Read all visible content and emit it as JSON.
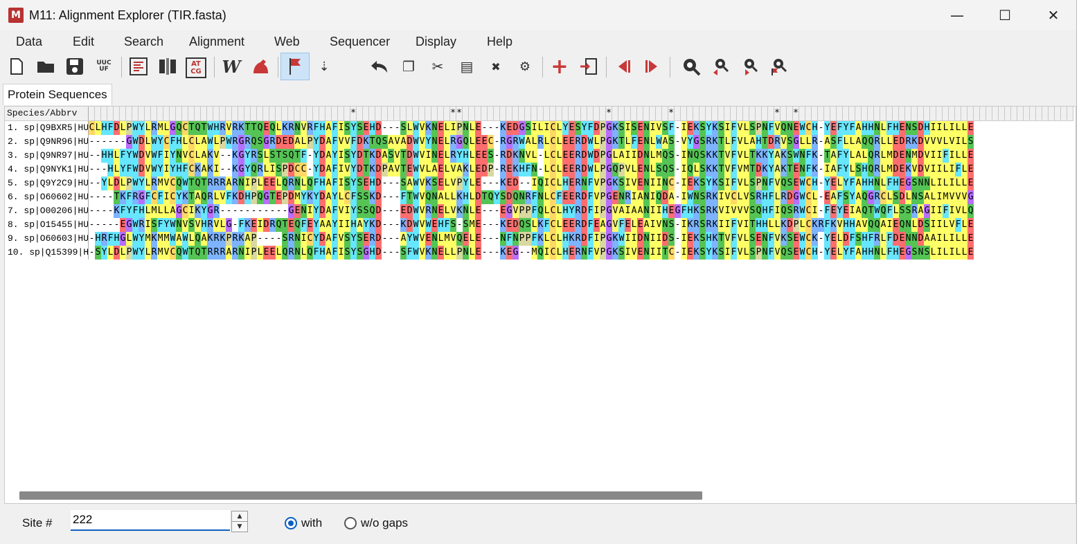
{
  "window": {
    "title": "M11: Alignment Explorer (TIR.fasta)",
    "app_icon_glyph": "M",
    "minimize_glyph": "—",
    "maximize_glyph": "☐",
    "close_glyph": "✕"
  },
  "menu": [
    "Data",
    "Edit",
    "Search",
    "Alignment",
    "Web",
    "Sequencer",
    "Display",
    "Help"
  ],
  "toolbar": {
    "icons": [
      "new-file-icon",
      "open-folder-icon",
      "save-icon",
      "translate-uuc-icon",
      "alignment-view-icon",
      "column-block-icon",
      "dna-atcg-icon",
      "w-clustal-icon",
      "muscle-icon",
      "flag-mark-icon",
      "cursor-insert-icon",
      "undo-icon",
      "copy-icon",
      "cut-icon",
      "paste-icon",
      "delete-icon",
      "search-settings-icon",
      "add-sequence-icon",
      "import-icon",
      "previous-block-icon",
      "next-block-icon",
      "search-icon",
      "search-previous-icon",
      "search-next-icon",
      "search-marked-icon"
    ],
    "label_uucf": "UUC UF",
    "label_atcg": "AT CG",
    "label_w": "W"
  },
  "tab": "Protein Sequences",
  "alignment": {
    "header_label": "Species/Abbrv",
    "consensus": "                                          *               **                       *         *                *  *                                                     ",
    "rows": [
      {
        "name": "1.  sp|Q9BXR5|HU",
        "seq": "CLHFDLPWYLRMLGQCTQTWHRVRKTTQEQLKRNVRFHAFISYSEHD---SLWVKNELIPNLE---KEDGSILICLYESYFDPGKSISENIVSF-IEKSYKSIFVLSPNFVQNEWCH-YEFYFAHHNLFHENSDHIILILLE"
      },
      {
        "name": "2.  sp|Q9NR96|HU",
        "seq": "------GWDLWYCFHLCLAWLPWRGRQSGRDEDALPYDAFVVFDKTQSAVADWVYNELRGQLEEC-RGRWALRLCLEERDWLPGKTLFENLWAS-VYGSRKTLFVLAHTDRVSGLLR-ASFLLAQQRLLEDRKDVVVLVILS"
      },
      {
        "name": "3.  sp|Q9NR97|HU",
        "seq": "--HHLFYWDVWFIYNVCLAKV--KGYRSLSTSQTF-YDAYISYDTKDASVTDWVINELRYHLEES-RDKNVL-LCLEERDWDPGLAIIDNLMQS-INQSKKTVFVLTKKYAKSWNFK-TAFYLALQRLMDENMDVIIFILLE"
      },
      {
        "name": "4.  sp|Q9NYK1|HU",
        "seq": "---HLYFWDVWYIYHFCKAKI--KGYQRLISPDCC-YDAFIVYDTKDPAVTEWVLAELVAKLEDP-REKHFN-LCLEERDWLPGQPVLENLSQS-IQLSKKTVFVMTDKYAKTENFK-IAFYLSHQRLMDEKVDVIILIFLE"
      },
      {
        "name": "5.  sp|Q9Y2C9|HU",
        "seq": "--YLDLPWYLRMVCQWTQTRRRARNIPLEELQRNLQFHAFISYSEHD---SAWVKSELVPYLE---KED--IQICLHERNFVPGKSIVENIINC-IEKSYKSIFVLSPNFVQSEWCH-YELYFAHHNLFHEGSNNLILILLE"
      },
      {
        "name": "6.  sp|O60602|HU",
        "seq": "----TKFRGFCFICYKTAQRLVFKDHPQGTEPDMYKYDAYLCFSSKD---FTWVQNALLKHLDTQYSDQNRFNLCFEERDFVPGENRIANIQDA-IWNSRKIVCLVSRHFLRDGWCL-EAFSYAQGRCLSDLNSALIMVVVG"
      },
      {
        "name": "7.  sp|O00206|HU",
        "seq": "----KFYFHLMLLAGCIKYGR-----------GENIYDAFVIYSSQD---EDWVRNELVKNLE---EGVPPFQLCLHYRDFIPGVAIAANIIHEGFHKSRKVIVVVSQHFIQSRWCI-FEYEIAQTWQFLSSRAGIIFIVLQ"
      },
      {
        "name": "8.  sp|O15455|HU",
        "seq": "-----EGWRISFYWNVSVHRVLG-FKEIDRQTEQFEYAAYIIHAYKD---KDWVWEHFS-SME---KEDQSLKFCLEERDFEAGVFELEAIVNS-IKRSRKIIFVITHHLLKDPLCKRFKVHHAVQQAIEQNLDSIILVFLE"
      },
      {
        "name": "9.  sp|O60603|HU",
        "seq": "-HRFHGLWYMKMMWAWLQAKRKPRKAP----SRNICYDAFVSYSERD---AYWVENLMVQELE---NFNPPFKLCLHKRDFIPGKWIIDNIIDS-IEKSHKTVFVLSENFVKSEWCK-YELDFSHFRLFDENNDAAILILLE"
      },
      {
        "name": "10.  sp|Q15399|H",
        "seq": "-SYLDLPWYLRMVCQWTQTRRRARNIPLEELQRNLQFHAFISYSGHD---SFWVKNELLPNLE---KEG--MQICLHERNFVPGKSIVENIITC-IEKSYKSIFVLSPNFVQSEWCH-YELYFAHHNLFHEGSNSLILILLE"
      }
    ]
  },
  "residue_colors": {
    "A": "#ffff66",
    "I": "#ffff66",
    "L": "#ffff66",
    "M": "#ffff66",
    "V": "#ffff66",
    "C": "#ffd866",
    "F": "#66e6ff",
    "W": "#66e6ff",
    "Y": "#66e6ff",
    "H": "#66e6ff",
    "S": "#55c455",
    "T": "#55c455",
    "N": "#55c455",
    "Q": "#55c455",
    "D": "#ff6e6e",
    "E": "#ff6e6e",
    "K": "#7db3ff",
    "R": "#7db3ff",
    "G": "#b86eff",
    "P": "#d8d8a0",
    "-": "#ffffff"
  },
  "status": {
    "site_label": "Site #",
    "site_value": "222",
    "spin_up": "▲",
    "spin_down": "▼",
    "option_with": "with",
    "option_without": "w/o gaps",
    "selected": "with"
  }
}
